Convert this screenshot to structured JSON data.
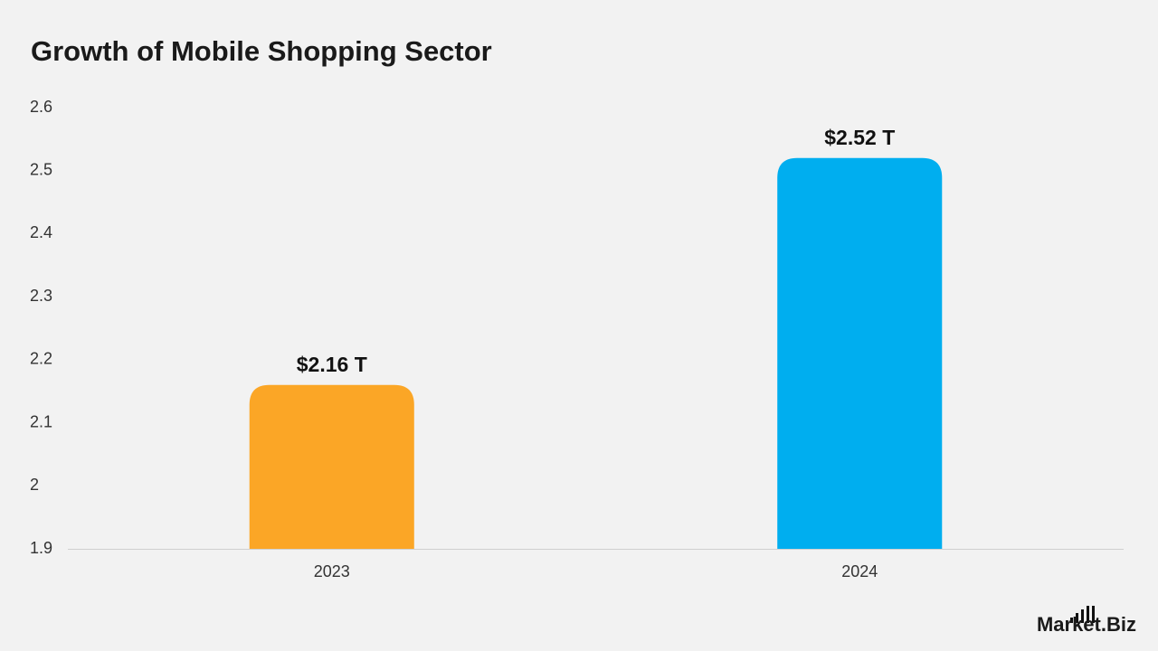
{
  "chart_data": {
    "type": "bar",
    "title": "Growth of Mobile Shopping Sector",
    "categories": [
      "2023",
      "2024"
    ],
    "values": [
      2.16,
      2.52
    ],
    "value_labels": [
      "$2.16 T",
      "$2.52 T"
    ],
    "colors": [
      "#FBA626",
      "#00AEEF"
    ],
    "ylim": [
      1.9,
      2.6
    ],
    "yticks": [
      1.9,
      2,
      2.1,
      2.2,
      2.3,
      2.4,
      2.5,
      2.6
    ],
    "grid": false
  },
  "brand": "Market.Biz"
}
